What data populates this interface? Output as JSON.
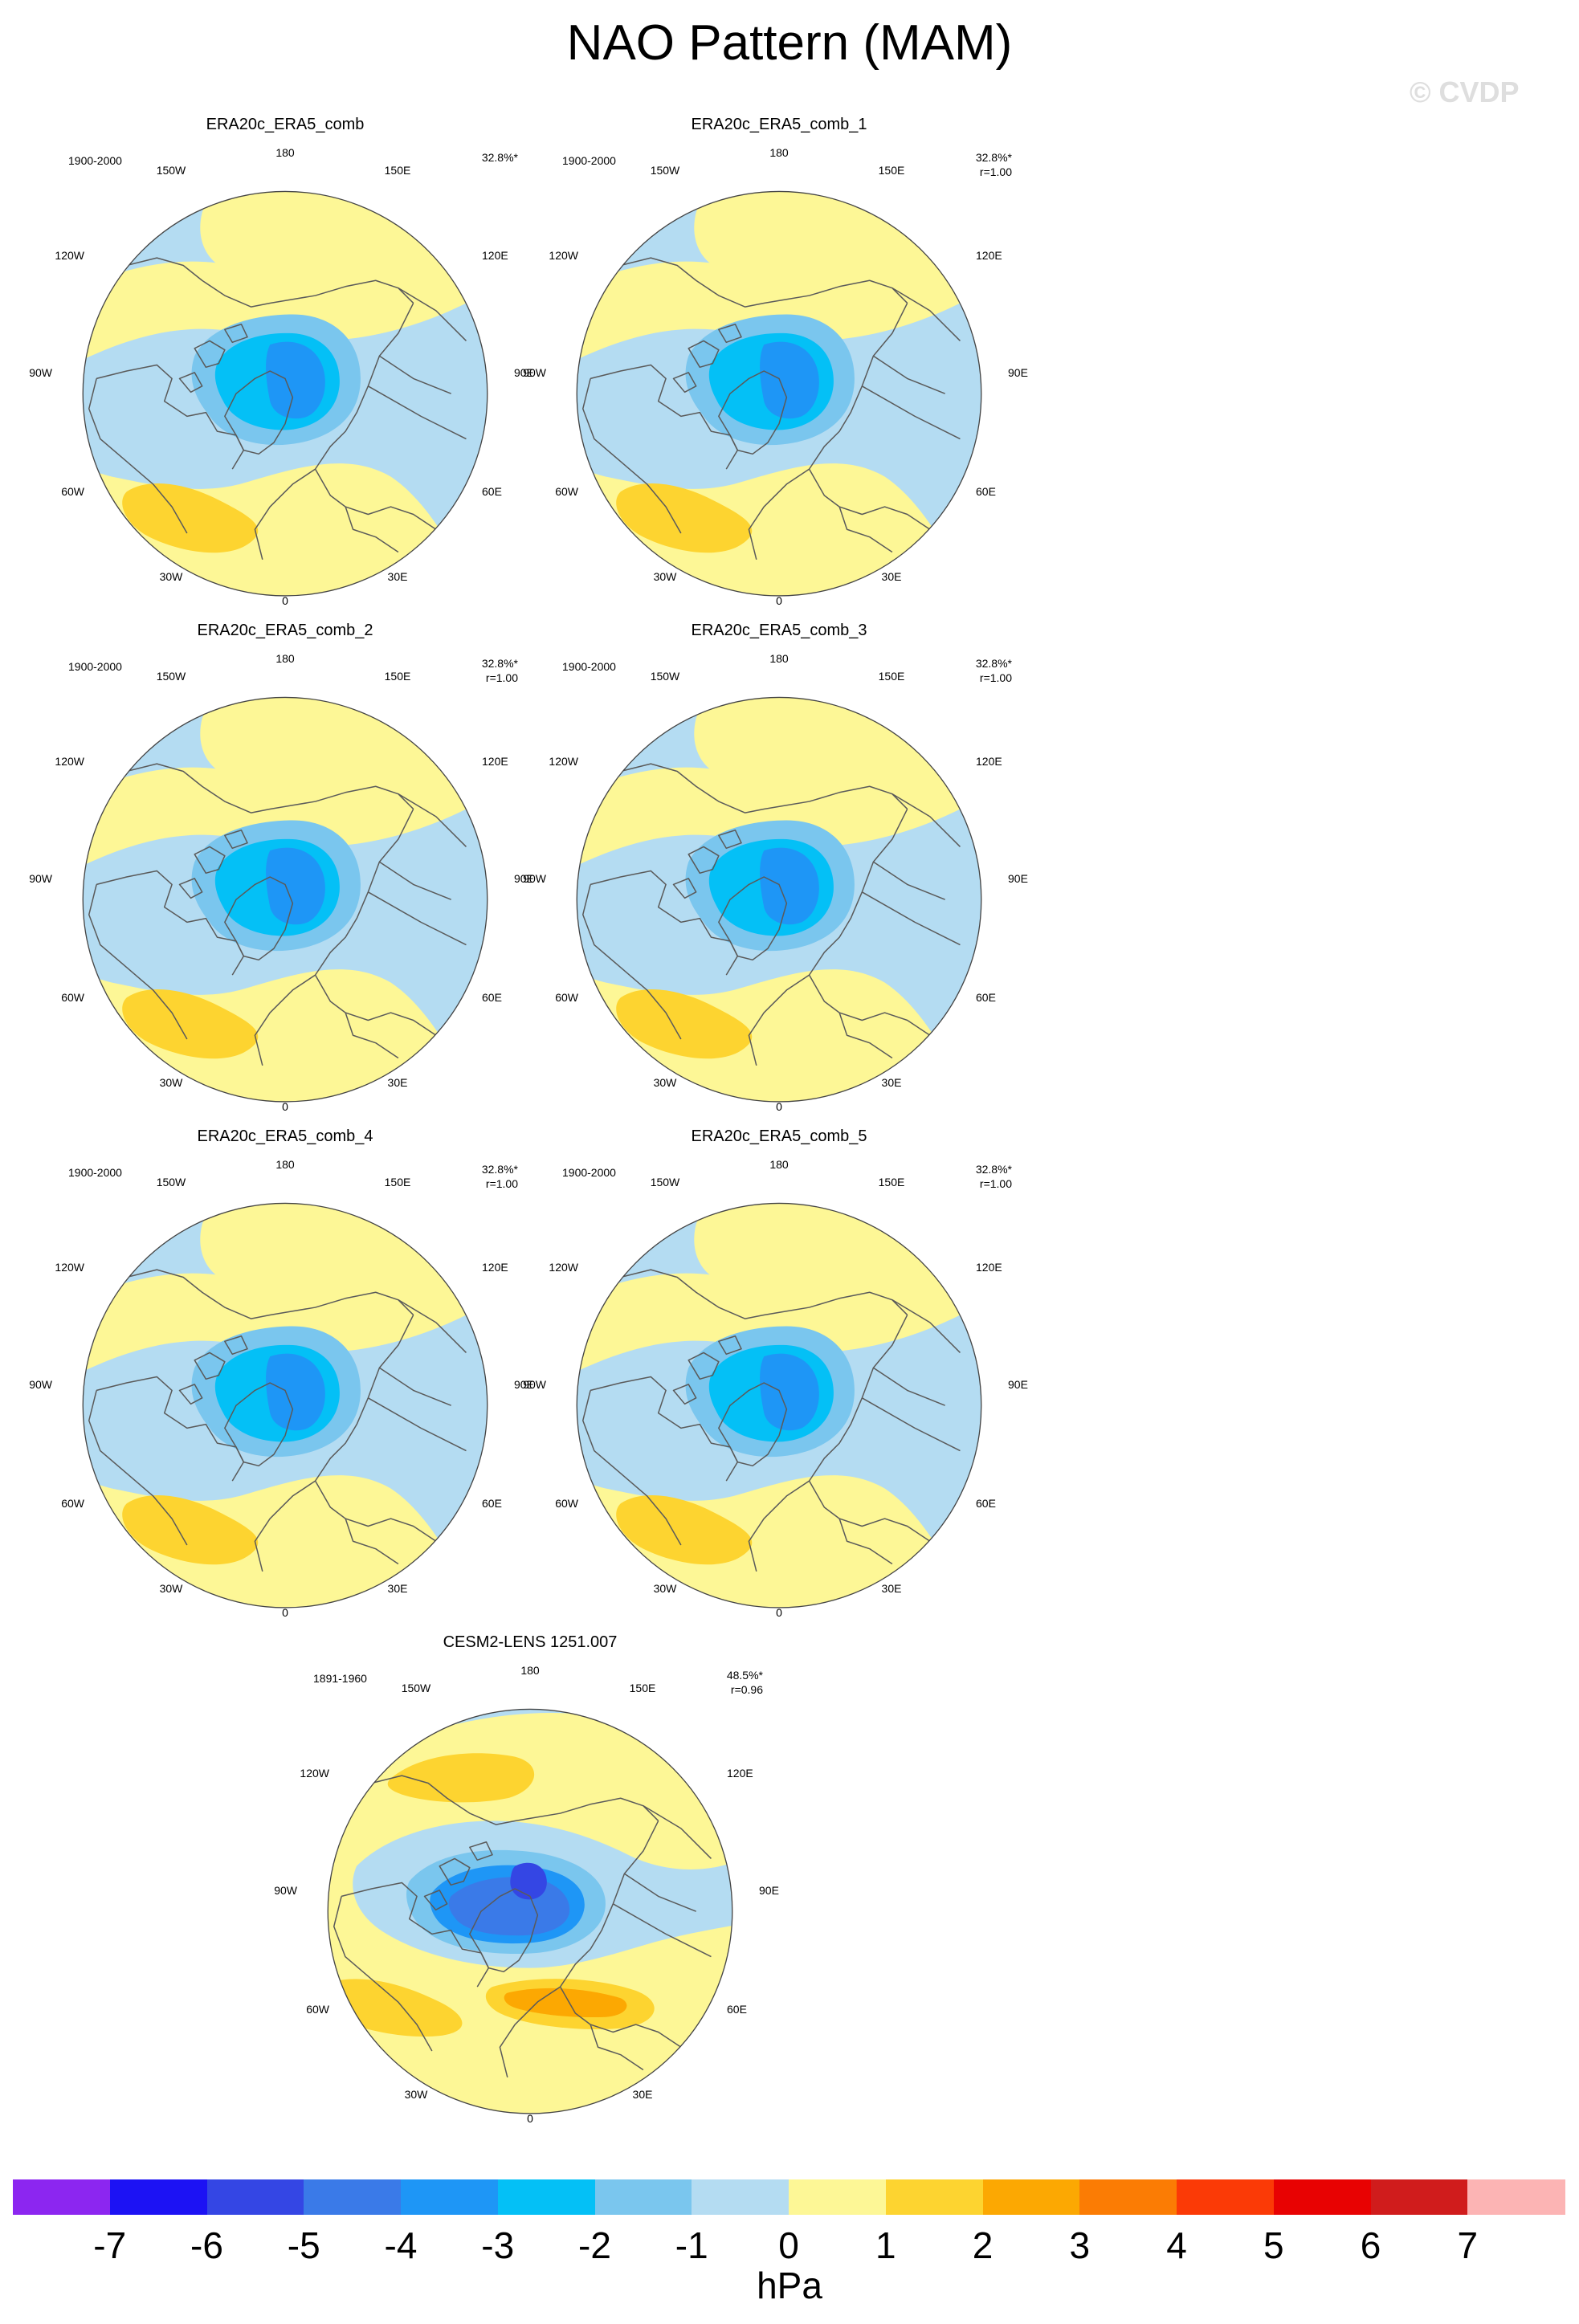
{
  "figure": {
    "title": "NAO Pattern (MAM)",
    "watermark": "© CVDP"
  },
  "lon_labels": [
    "180",
    "150E",
    "120E",
    "90E",
    "60E",
    "30E",
    "0",
    "30W",
    "60W",
    "90W",
    "120W",
    "150W"
  ],
  "panels": [
    {
      "title": "ERA20c_ERA5_comb",
      "period": "1900-2000",
      "pct": "32.8%*",
      "corr": ""
    },
    {
      "title": "ERA20c_ERA5_comb_1",
      "period": "1900-2000",
      "pct": "32.8%*",
      "corr": "r=1.00"
    },
    {
      "title": "ERA20c_ERA5_comb_2",
      "period": "1900-2000",
      "pct": "32.8%*",
      "corr": "r=1.00"
    },
    {
      "title": "ERA20c_ERA5_comb_3",
      "period": "1900-2000",
      "pct": "32.8%*",
      "corr": "r=1.00"
    },
    {
      "title": "ERA20c_ERA5_comb_4",
      "period": "1900-2000",
      "pct": "32.8%*",
      "corr": "r=1.00"
    },
    {
      "title": "ERA20c_ERA5_comb_5",
      "period": "1900-2000",
      "pct": "32.8%*",
      "corr": "r=1.00"
    },
    {
      "title": "CESM2-LENS 1251.007",
      "period": "1891-1960",
      "pct": "48.5%*",
      "corr": "r=0.96"
    }
  ],
  "colorbar": {
    "unit": "hPa",
    "tick_labels": [
      "-7",
      "-6",
      "-5",
      "-4",
      "-3",
      "-2",
      "-1",
      "0",
      "1",
      "2",
      "3",
      "4",
      "5",
      "6",
      "7"
    ],
    "colors": [
      "#8c26f0",
      "#1c12f4",
      "#3446e4",
      "#3a7ae8",
      "#1e96f6",
      "#04c0f6",
      "#7ac6ee",
      "#b4dcf2",
      "#fdf796",
      "#fdd430",
      "#fca802",
      "#fb7c04",
      "#fb3a06",
      "#e80202",
      "#d01c1c",
      "#fcb4b4"
    ]
  }
}
